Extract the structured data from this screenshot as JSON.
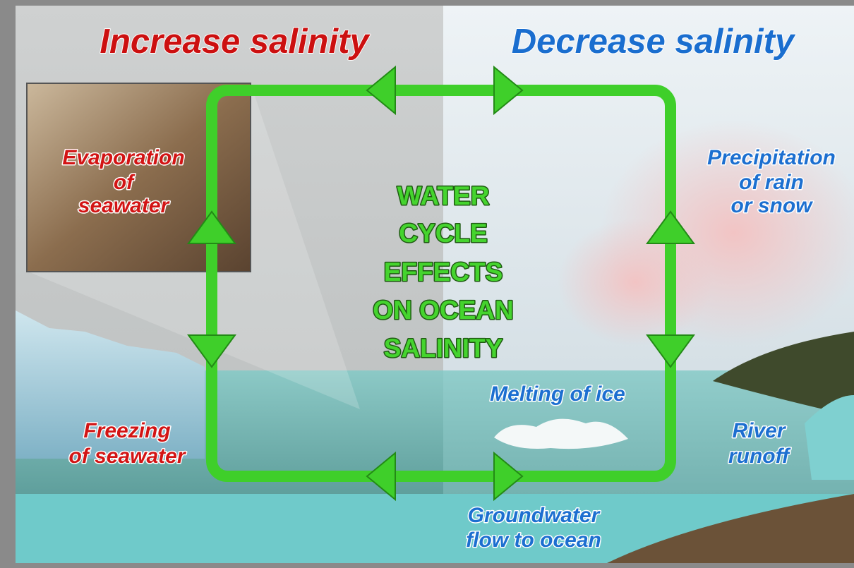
{
  "header": {
    "left_title": "Increase salinity",
    "right_title": "Decrease salinity"
  },
  "center": {
    "lines": [
      "WATER",
      "CYCLE",
      "EFFECTS",
      "ON OCEAN",
      "SALINITY"
    ]
  },
  "increase_processes": [
    {
      "lines": [
        "Evaporation",
        "of",
        "seawater"
      ]
    },
    {
      "lines": [
        "Freezing",
        "of seawater"
      ]
    }
  ],
  "decrease_processes": [
    {
      "lines": [
        "Precipitation",
        "of rain",
        "or snow"
      ]
    },
    {
      "lines": [
        "Melting of ice"
      ]
    },
    {
      "lines": [
        "River",
        "runoff"
      ]
    },
    {
      "lines": [
        "Groundwater",
        "flow to ocean"
      ]
    }
  ]
}
